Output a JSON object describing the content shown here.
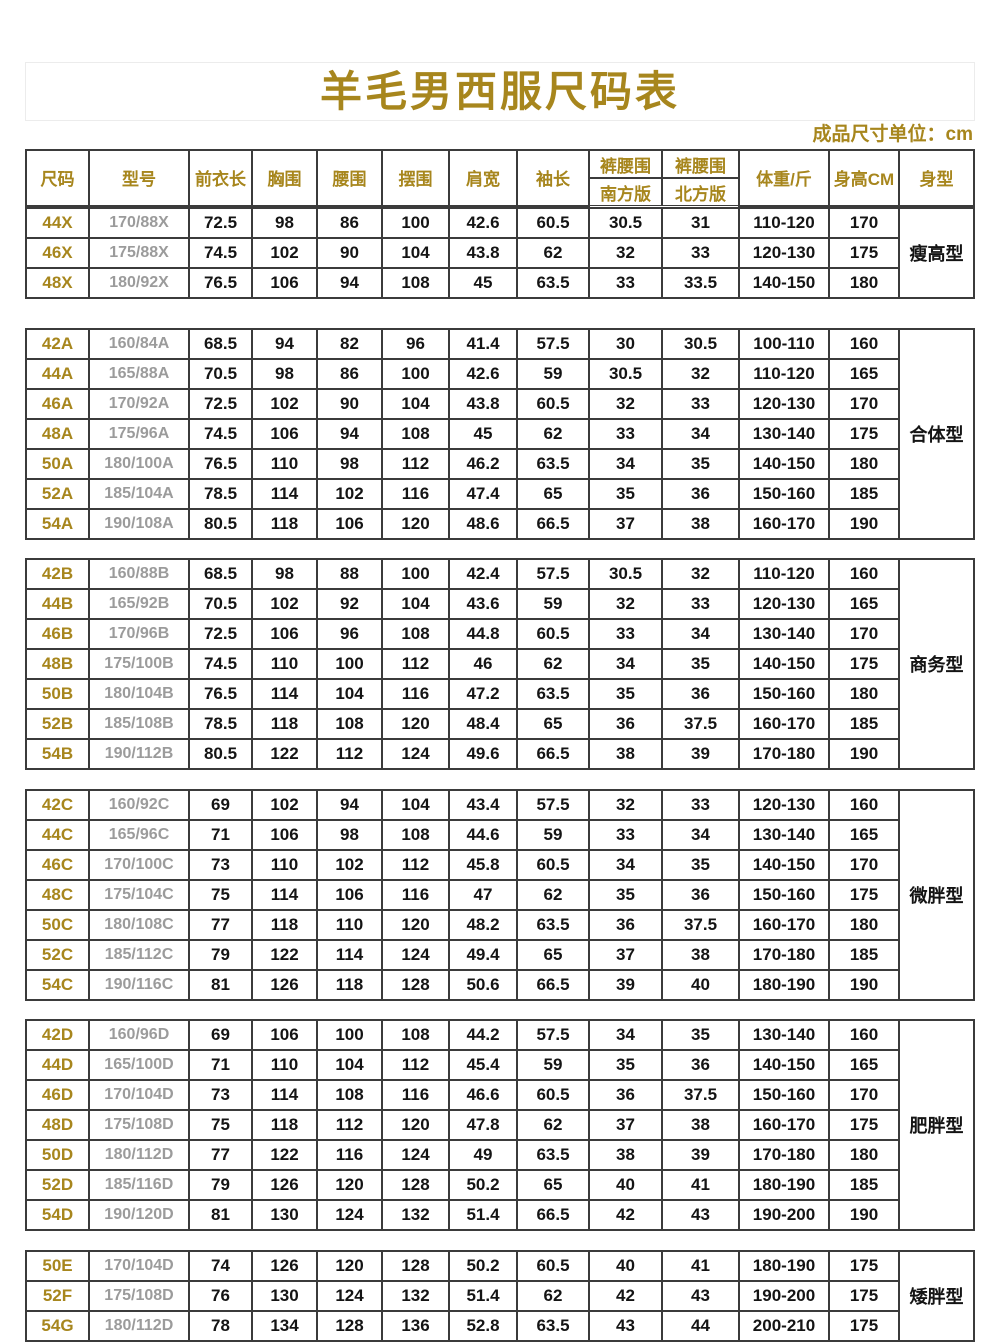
{
  "title": "羊毛男西服尺码表",
  "unit_note": "成品尺寸单位：cm",
  "header": {
    "size": "尺码",
    "model": "型号",
    "front_length": "前衣长",
    "chest": "胸围",
    "waist": "腰围",
    "hem": "摆围",
    "shoulder": "肩宽",
    "sleeve": "袖长",
    "pants_waist": "裤腰围",
    "south_version": "南方版",
    "north_version": "北方版",
    "weight": "体重/斤",
    "height": "身高CM",
    "body_type": "身型"
  },
  "groups": [
    {
      "body_type": "瘦高型",
      "rows": [
        [
          "44X",
          "170/88X",
          "72.5",
          "98",
          "86",
          "100",
          "42.6",
          "60.5",
          "30.5",
          "31",
          "110-120",
          "170"
        ],
        [
          "46X",
          "175/88X",
          "74.5",
          "102",
          "90",
          "104",
          "43.8",
          "62",
          "32",
          "33",
          "120-130",
          "175"
        ],
        [
          "48X",
          "180/92X",
          "76.5",
          "106",
          "94",
          "108",
          "45",
          "63.5",
          "33",
          "33.5",
          "140-150",
          "180"
        ]
      ]
    },
    {
      "body_type": "合体型",
      "rows": [
        [
          "42A",
          "160/84A",
          "68.5",
          "94",
          "82",
          "96",
          "41.4",
          "57.5",
          "30",
          "30.5",
          "100-110",
          "160"
        ],
        [
          "44A",
          "165/88A",
          "70.5",
          "98",
          "86",
          "100",
          "42.6",
          "59",
          "30.5",
          "32",
          "110-120",
          "165"
        ],
        [
          "46A",
          "170/92A",
          "72.5",
          "102",
          "90",
          "104",
          "43.8",
          "60.5",
          "32",
          "33",
          "120-130",
          "170"
        ],
        [
          "48A",
          "175/96A",
          "74.5",
          "106",
          "94",
          "108",
          "45",
          "62",
          "33",
          "34",
          "130-140",
          "175"
        ],
        [
          "50A",
          "180/100A",
          "76.5",
          "110",
          "98",
          "112",
          "46.2",
          "63.5",
          "34",
          "35",
          "140-150",
          "180"
        ],
        [
          "52A",
          "185/104A",
          "78.5",
          "114",
          "102",
          "116",
          "47.4",
          "65",
          "35",
          "36",
          "150-160",
          "185"
        ],
        [
          "54A",
          "190/108A",
          "80.5",
          "118",
          "106",
          "120",
          "48.6",
          "66.5",
          "37",
          "38",
          "160-170",
          "190"
        ]
      ]
    },
    {
      "body_type": "商务型",
      "rows": [
        [
          "42B",
          "160/88B",
          "68.5",
          "98",
          "88",
          "100",
          "42.4",
          "57.5",
          "30.5",
          "32",
          "110-120",
          "160"
        ],
        [
          "44B",
          "165/92B",
          "70.5",
          "102",
          "92",
          "104",
          "43.6",
          "59",
          "32",
          "33",
          "120-130",
          "165"
        ],
        [
          "46B",
          "170/96B",
          "72.5",
          "106",
          "96",
          "108",
          "44.8",
          "60.5",
          "33",
          "34",
          "130-140",
          "170"
        ],
        [
          "48B",
          "175/100B",
          "74.5",
          "110",
          "100",
          "112",
          "46",
          "62",
          "34",
          "35",
          "140-150",
          "175"
        ],
        [
          "50B",
          "180/104B",
          "76.5",
          "114",
          "104",
          "116",
          "47.2",
          "63.5",
          "35",
          "36",
          "150-160",
          "180"
        ],
        [
          "52B",
          "185/108B",
          "78.5",
          "118",
          "108",
          "120",
          "48.4",
          "65",
          "36",
          "37.5",
          "160-170",
          "185"
        ],
        [
          "54B",
          "190/112B",
          "80.5",
          "122",
          "112",
          "124",
          "49.6",
          "66.5",
          "38",
          "39",
          "170-180",
          "190"
        ]
      ]
    },
    {
      "body_type": "微胖型",
      "rows": [
        [
          "42C",
          "160/92C",
          "69",
          "102",
          "94",
          "104",
          "43.4",
          "57.5",
          "32",
          "33",
          "120-130",
          "160"
        ],
        [
          "44C",
          "165/96C",
          "71",
          "106",
          "98",
          "108",
          "44.6",
          "59",
          "33",
          "34",
          "130-140",
          "165"
        ],
        [
          "46C",
          "170/100C",
          "73",
          "110",
          "102",
          "112",
          "45.8",
          "60.5",
          "34",
          "35",
          "140-150",
          "170"
        ],
        [
          "48C",
          "175/104C",
          "75",
          "114",
          "106",
          "116",
          "47",
          "62",
          "35",
          "36",
          "150-160",
          "175"
        ],
        [
          "50C",
          "180/108C",
          "77",
          "118",
          "110",
          "120",
          "48.2",
          "63.5",
          "36",
          "37.5",
          "160-170",
          "180"
        ],
        [
          "52C",
          "185/112C",
          "79",
          "122",
          "114",
          "124",
          "49.4",
          "65",
          "37",
          "38",
          "170-180",
          "185"
        ],
        [
          "54C",
          "190/116C",
          "81",
          "126",
          "118",
          "128",
          "50.6",
          "66.5",
          "39",
          "40",
          "180-190",
          "190"
        ]
      ]
    },
    {
      "body_type": "肥胖型",
      "rows": [
        [
          "42D",
          "160/96D",
          "69",
          "106",
          "100",
          "108",
          "44.2",
          "57.5",
          "34",
          "35",
          "130-140",
          "160"
        ],
        [
          "44D",
          "165/100D",
          "71",
          "110",
          "104",
          "112",
          "45.4",
          "59",
          "35",
          "36",
          "140-150",
          "165"
        ],
        [
          "46D",
          "170/104D",
          "73",
          "114",
          "108",
          "116",
          "46.6",
          "60.5",
          "36",
          "37.5",
          "150-160",
          "170"
        ],
        [
          "48D",
          "175/108D",
          "75",
          "118",
          "112",
          "120",
          "47.8",
          "62",
          "37",
          "38",
          "160-170",
          "175"
        ],
        [
          "50D",
          "180/112D",
          "77",
          "122",
          "116",
          "124",
          "49",
          "63.5",
          "38",
          "39",
          "170-180",
          "180"
        ],
        [
          "52D",
          "185/116D",
          "79",
          "126",
          "120",
          "128",
          "50.2",
          "65",
          "40",
          "41",
          "180-190",
          "185"
        ],
        [
          "54D",
          "190/120D",
          "81",
          "130",
          "124",
          "132",
          "51.4",
          "66.5",
          "42",
          "43",
          "190-200",
          "190"
        ]
      ]
    },
    {
      "body_type": "矮胖型",
      "rows": [
        [
          "50E",
          "170/104D",
          "74",
          "126",
          "120",
          "128",
          "50.2",
          "60.5",
          "40",
          "41",
          "180-190",
          "175"
        ],
        [
          "52F",
          "175/108D",
          "76",
          "130",
          "124",
          "132",
          "51.4",
          "62",
          "42",
          "43",
          "190-200",
          "175"
        ],
        [
          "54G",
          "180/112D",
          "78",
          "134",
          "128",
          "136",
          "52.8",
          "63.5",
          "43",
          "44",
          "200-210",
          "175"
        ]
      ]
    }
  ],
  "colors": {
    "accent_gold": "#a7861d",
    "model_gray": "#9b9b9b",
    "data_text": "#141414",
    "border": "#3b3b3b"
  }
}
